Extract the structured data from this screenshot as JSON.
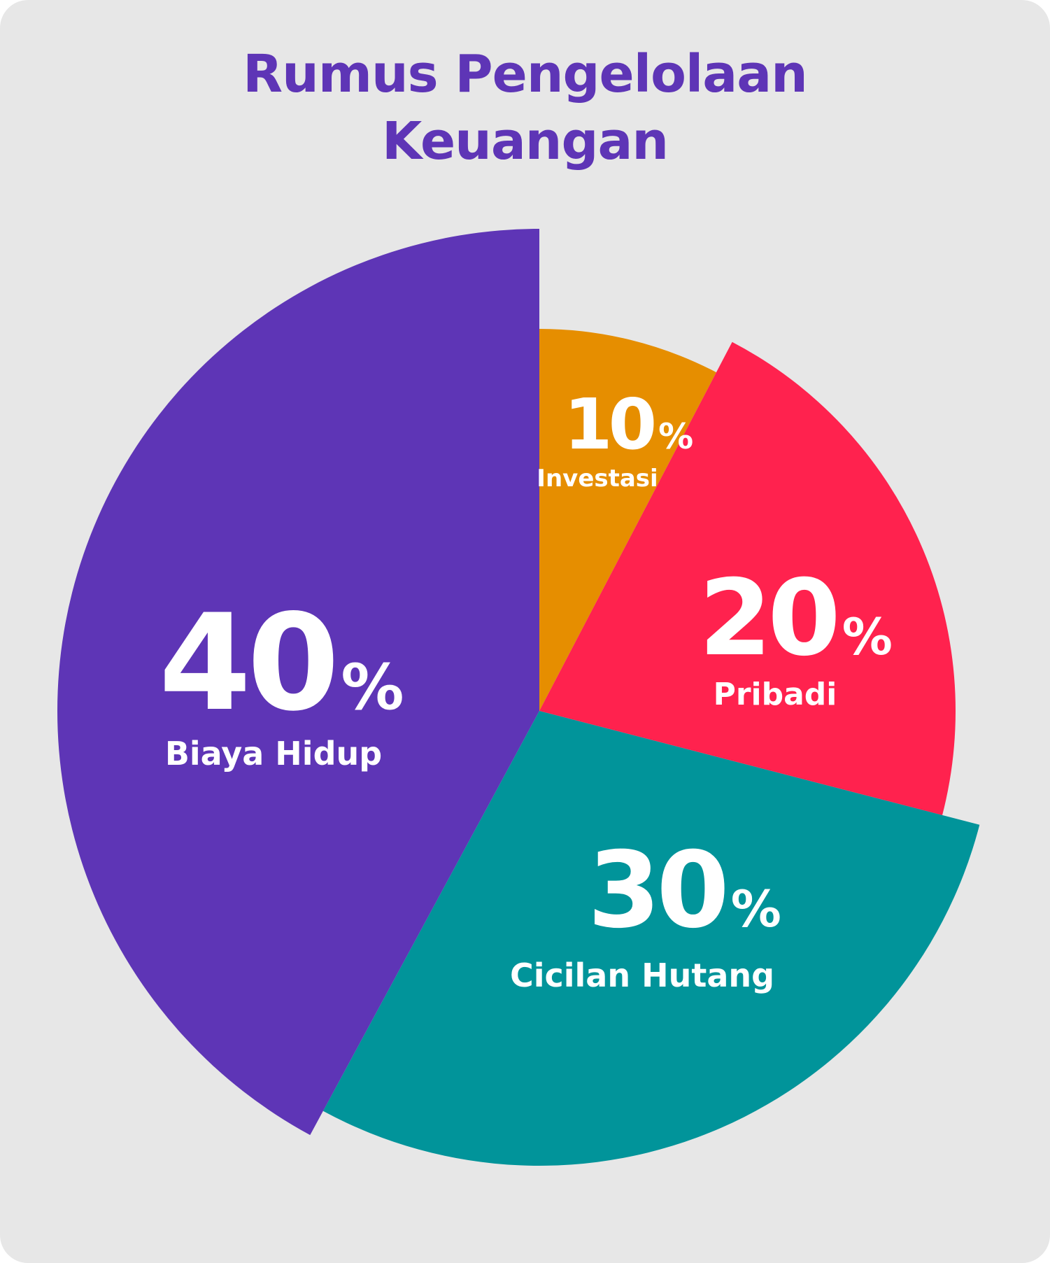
{
  "chart_data": {
    "type": "pie",
    "title": "Rumus Pengelolaan Keuangan",
    "slices": [
      {
        "label": "Investasi",
        "value": 10,
        "value_label": "10",
        "unit": "%",
        "color": "#e68e00"
      },
      {
        "label": "Pribadi",
        "value": 20,
        "value_label": "20",
        "unit": "%",
        "color": "#ff224e"
      },
      {
        "label": "Cicilan Hutang",
        "value": 30,
        "value_label": "30",
        "unit": "%",
        "color": "#01949a"
      },
      {
        "label": "Biaya Hidup",
        "value": 40,
        "value_label": "40",
        "unit": "%",
        "color": "#5e35b6"
      }
    ]
  },
  "colors": {
    "background": "#e7e7e7",
    "title": "#5e35b6",
    "label": "#ffffff"
  }
}
